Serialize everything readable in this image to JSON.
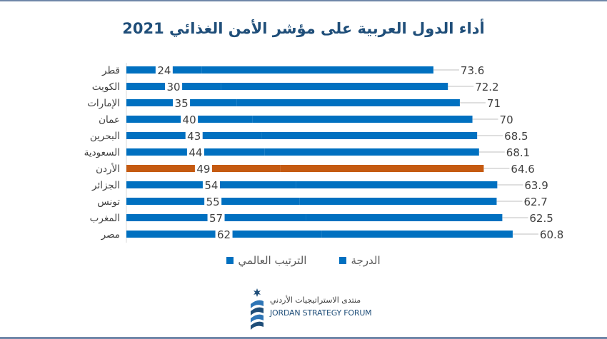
{
  "chart_data": {
    "type": "bar",
    "orientation": "horizontal",
    "stacked": true,
    "title": "أداء الدول العربية على مؤشر الأمن الغذائي 2021",
    "categories": [
      "قطر",
      "الكويت",
      "الإمارات",
      "عمان",
      "البحرين",
      "السعودية",
      "الأردن",
      "الجزائر",
      "تونس",
      "المغرب",
      "مصر"
    ],
    "series": [
      {
        "name": "الترتيب العالمي",
        "values": [
          24,
          30,
          35,
          40,
          43,
          44,
          49,
          54,
          55,
          57,
          62
        ]
      },
      {
        "name": "الدرجة",
        "values": [
          73.6,
          72.2,
          71,
          70,
          68.5,
          68.1,
          64.6,
          63.9,
          62.7,
          62.5,
          60.8
        ]
      }
    ],
    "rank_labels": [
      "24",
      "30",
      "35",
      "40",
      "43",
      "44",
      "49",
      "54",
      "55",
      "57",
      "62"
    ],
    "score_labels": [
      "73.6",
      "72.2",
      "71",
      "70",
      "68.5",
      "68.1",
      "64.6",
      "63.9",
      "62.7",
      "62.5",
      "60.8"
    ],
    "highlight_category": "الأردن",
    "colors": {
      "default": "#0070c0",
      "highlight": "#c55a11"
    },
    "legend": [
      "الترتيب العالمي",
      "الدرجة"
    ],
    "legend_position": "bottom",
    "grid": false,
    "xlabel": "",
    "ylabel": ""
  },
  "logo": {
    "arabic": "منتدى الاستراتيجيات الأردني",
    "english": "JORDAN STRATEGY FORUM"
  }
}
